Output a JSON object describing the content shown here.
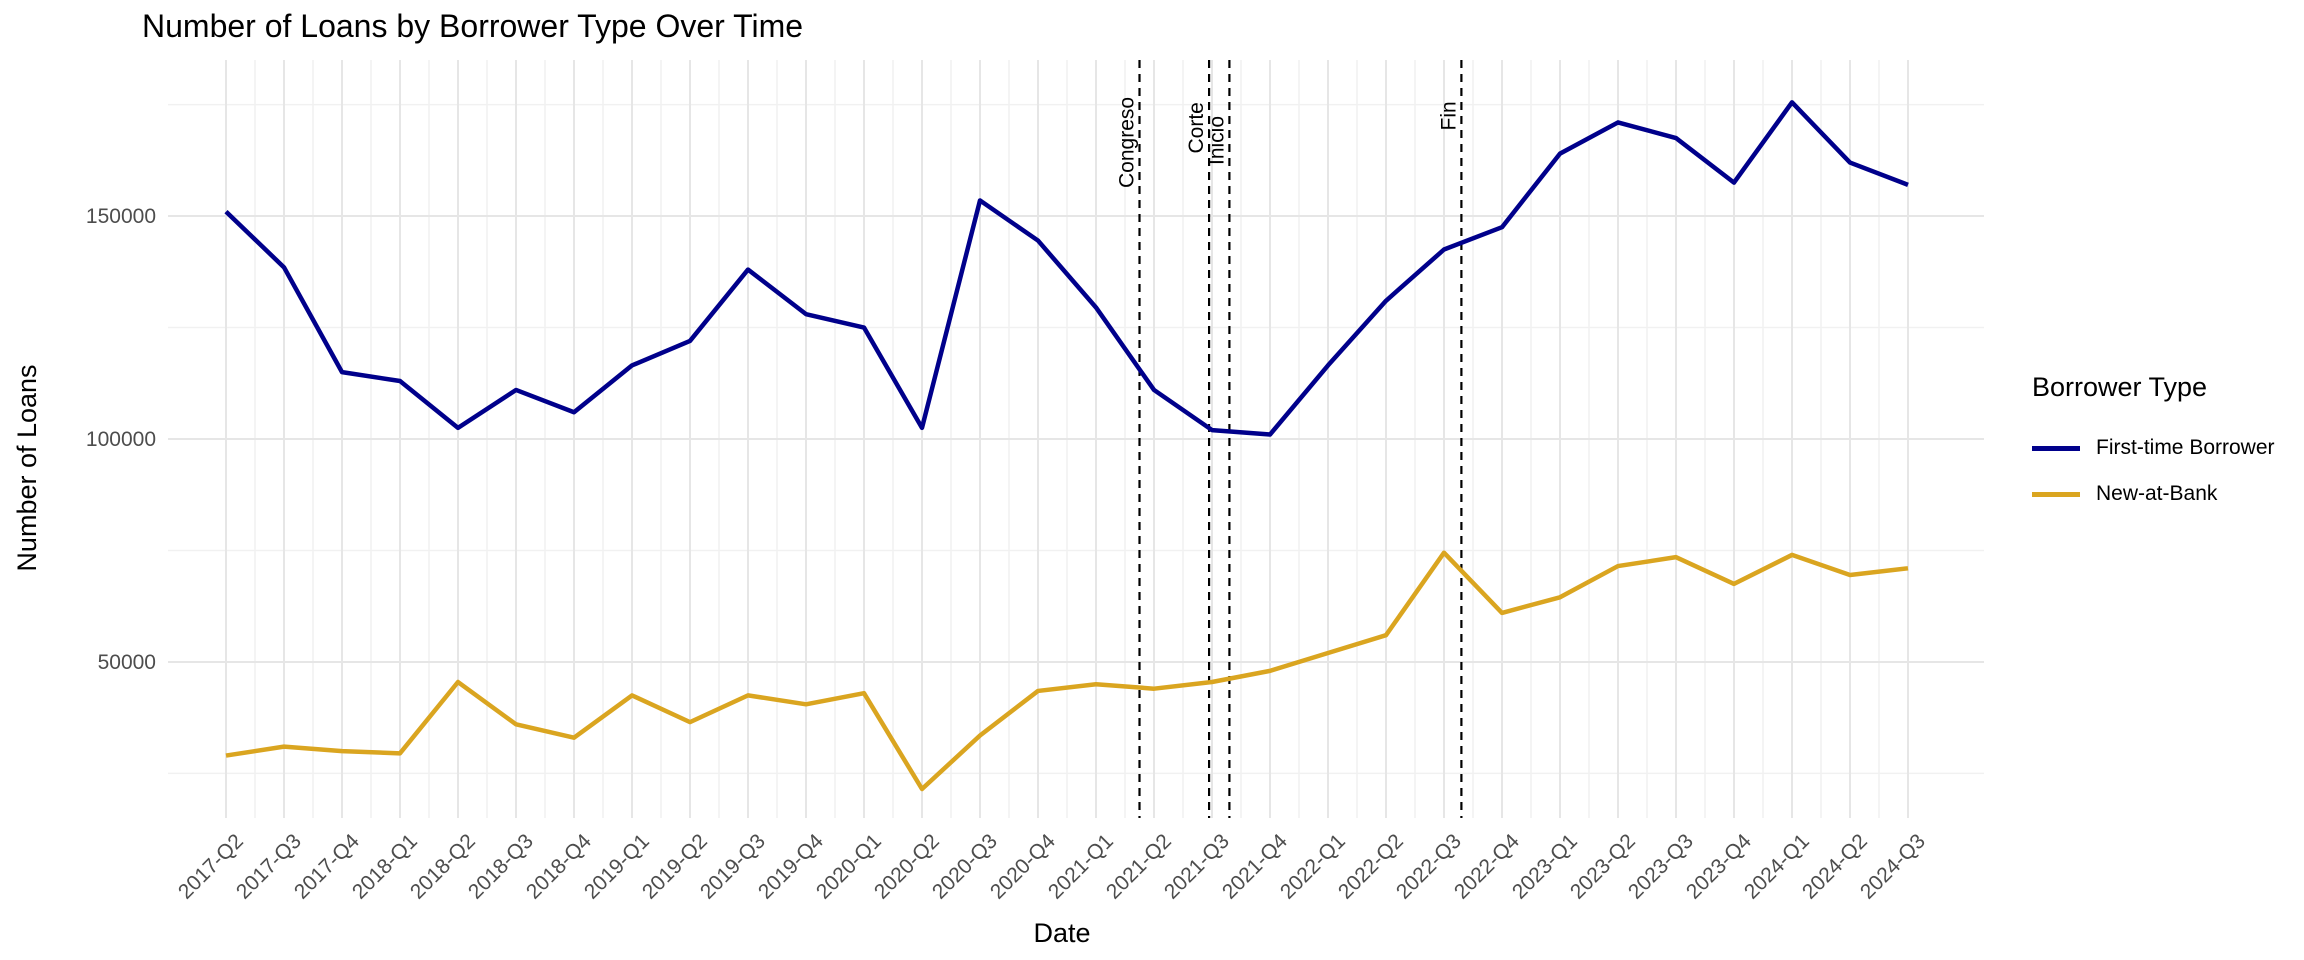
{
  "chart_data": {
    "type": "line",
    "title": "Number of Loans by Borrower Type Over Time",
    "xlabel": "Date",
    "ylabel": "Number of Loans",
    "categories": [
      "2017-Q2",
      "2017-Q3",
      "2017-Q4",
      "2018-Q1",
      "2018-Q2",
      "2018-Q3",
      "2018-Q4",
      "2019-Q1",
      "2019-Q2",
      "2019-Q3",
      "2019-Q4",
      "2020-Q1",
      "2020-Q2",
      "2020-Q3",
      "2020-Q4",
      "2021-Q1",
      "2021-Q2",
      "2021-Q3",
      "2021-Q4",
      "2022-Q1",
      "2022-Q2",
      "2022-Q3",
      "2022-Q4",
      "2023-Q1",
      "2023-Q2",
      "2023-Q3",
      "2023-Q4",
      "2024-Q1",
      "2024-Q2",
      "2024-Q3"
    ],
    "series": [
      {
        "name": "First-time Borrower",
        "color": "#00008B",
        "values": [
          151000,
          138500,
          115000,
          113000,
          102500,
          111000,
          106000,
          116500,
          122000,
          138000,
          128000,
          125000,
          102500,
          153500,
          144500,
          129500,
          111000,
          102000,
          101000,
          116500,
          131000,
          142500,
          147500,
          164000,
          171000,
          167500,
          157500,
          175500,
          162000,
          157000
        ]
      },
      {
        "name": "New-at-Bank",
        "color": "#DAA520",
        "values": [
          29000,
          31000,
          30000,
          29500,
          45500,
          36000,
          33000,
          42500,
          36500,
          42500,
          40500,
          43000,
          21500,
          33500,
          43500,
          45000,
          44000,
          45500,
          48000,
          52000,
          56000,
          74500,
          61000,
          64500,
          71500,
          73500,
          67500,
          74000,
          69500,
          71000
        ]
      }
    ],
    "ylim": [
      15000,
      185000
    ],
    "yticks": [
      50000,
      100000,
      150000
    ],
    "ytick_labels": [
      "50000",
      "100000",
      "150000"
    ],
    "grid": true,
    "legend_title": "Borrower Type",
    "legend_position": "right",
    "annotations": [
      {
        "label": "Congreso",
        "x_index": 15.75
      },
      {
        "label": "Corte",
        "x_index": 16.95
      },
      {
        "label": "Inicio",
        "x_index": 17.3
      },
      {
        "label": "Fin",
        "x_index": 21.3
      }
    ]
  }
}
